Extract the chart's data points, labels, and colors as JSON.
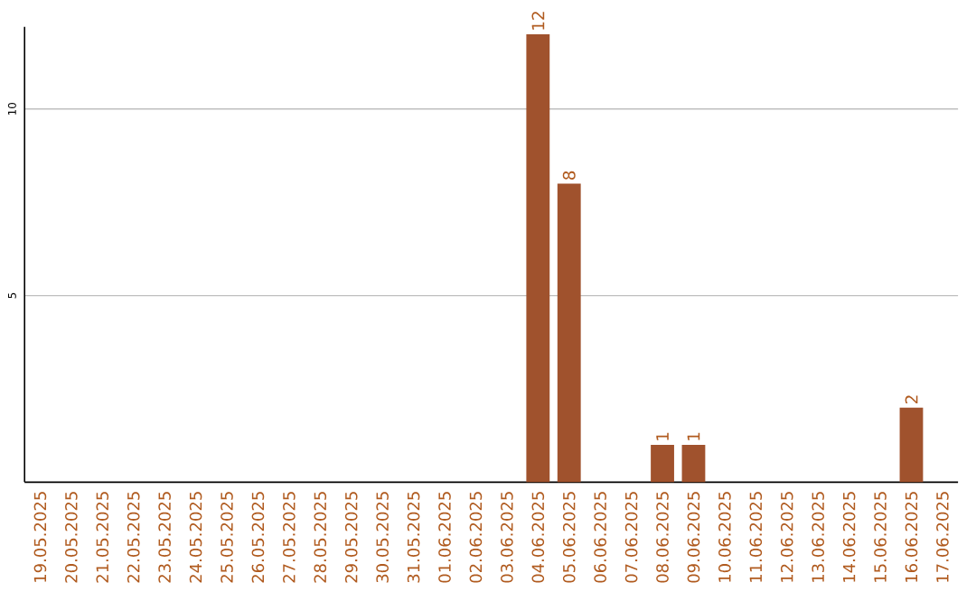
{
  "chart_data": {
    "type": "bar",
    "categories": [
      "19.05.2025",
      "20.05.2025",
      "21.05.2025",
      "22.05.2025",
      "23.05.2025",
      "24.05.2025",
      "25.05.2025",
      "26.05.2025",
      "27.05.2025",
      "28.05.2025",
      "29.05.2025",
      "30.05.2025",
      "31.05.2025",
      "01.06.2025",
      "02.06.2025",
      "03.06.2025",
      "04.06.2025",
      "05.06.2025",
      "06.06.2025",
      "07.06.2025",
      "08.06.2025",
      "09.06.2025",
      "10.06.2025",
      "11.06.2025",
      "12.06.2025",
      "13.06.2025",
      "14.06.2025",
      "15.06.2025",
      "16.06.2025",
      "17.06.2025"
    ],
    "values": [
      0,
      0,
      0,
      0,
      0,
      0,
      0,
      0,
      0,
      0,
      0,
      0,
      0,
      0,
      0,
      0,
      12,
      8,
      0,
      0,
      1,
      1,
      0,
      0,
      0,
      0,
      0,
      0,
      2,
      0
    ],
    "value_labels": [
      null,
      null,
      null,
      null,
      null,
      null,
      null,
      null,
      null,
      null,
      null,
      null,
      null,
      null,
      null,
      null,
      "12",
      "8",
      null,
      null,
      "1",
      "1",
      null,
      null,
      null,
      null,
      null,
      null,
      "2",
      null
    ],
    "color": "#a0522d",
    "ylim": [
      0,
      12.2
    ],
    "yticks": [
      5,
      10
    ],
    "grid": "y"
  }
}
